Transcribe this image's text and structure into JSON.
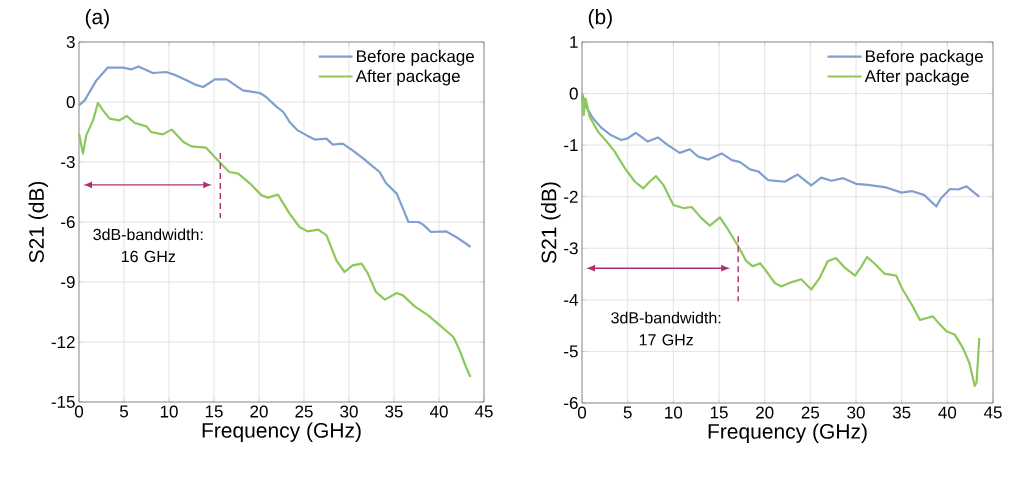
{
  "chart_data": [
    {
      "type": "line",
      "title": "(a)",
      "xlabel": "Frequency (GHz)",
      "ylabel": "S21 (dB)",
      "xlim": [
        0,
        45
      ],
      "ylim": [
        -15,
        3
      ],
      "xticks": [
        0,
        5,
        10,
        15,
        20,
        25,
        30,
        35,
        40,
        45
      ],
      "yticks": [
        -15,
        -12,
        -9,
        -6,
        -3,
        0,
        3
      ],
      "grid": true,
      "legend": "top right",
      "series": [
        {
          "name": "Before package",
          "color": "#7f9fcf",
          "x": [
            0,
            0.63,
            1.93,
            3.2,
            4.9,
            5.8,
            6.6,
            7.1,
            8.2,
            9.7,
            10.8,
            12.0,
            12.9,
            13.8,
            15.1,
            16.4,
            17.1,
            18.2,
            20.1,
            20.8,
            21.9,
            22.7,
            23.4,
            24.3,
            25.3,
            26.2,
            27.5,
            28.2,
            29.3,
            30.4,
            31.6,
            32.5,
            33.4,
            34.1,
            35.3,
            36.0,
            36.6,
            37.7,
            38.2,
            39.1,
            40.8,
            41.9,
            43.0,
            43.5
          ],
          "values": [
            -0.17,
            0.08,
            1.08,
            1.72,
            1.72,
            1.63,
            1.78,
            1.67,
            1.45,
            1.5,
            1.33,
            1.08,
            0.87,
            0.75,
            1.13,
            1.13,
            0.92,
            0.58,
            0.45,
            0.25,
            -0.22,
            -0.5,
            -1.0,
            -1.42,
            -1.67,
            -1.88,
            -1.83,
            -2.13,
            -2.08,
            -2.42,
            -2.83,
            -3.17,
            -3.5,
            -4.05,
            -4.58,
            -5.33,
            -6.0,
            -6.0,
            -6.12,
            -6.5,
            -6.47,
            -6.75,
            -7.08,
            -7.25
          ]
        },
        {
          "name": "After package",
          "color": "#8cc85a",
          "x": [
            0,
            0.44,
            0.8,
            1.56,
            2.1,
            2.67,
            3.4,
            4.5,
            5.3,
            6.2,
            7.5,
            8.0,
            9.3,
            10.3,
            11.6,
            12.5,
            14.1,
            15.6,
            16.7,
            17.7,
            19.0,
            20.3,
            21.0,
            22.1,
            23.4,
            24.5,
            25.4,
            26.6,
            27.5,
            28.6,
            29.5,
            30.4,
            31.4,
            32.1,
            33.0,
            34.0,
            35.3,
            36.0,
            37.3,
            38.8,
            40.1,
            41.6,
            42.3,
            43.0,
            43.5
          ],
          "values": [
            -1.58,
            -2.58,
            -1.67,
            -0.92,
            -0.05,
            -0.42,
            -0.83,
            -0.92,
            -0.7,
            -1.05,
            -1.22,
            -1.5,
            -1.62,
            -1.38,
            -2.0,
            -2.22,
            -2.28,
            -3.0,
            -3.5,
            -3.58,
            -4.08,
            -4.67,
            -4.78,
            -4.63,
            -5.58,
            -6.25,
            -6.47,
            -6.38,
            -6.67,
            -7.92,
            -8.5,
            -8.17,
            -8.08,
            -8.58,
            -9.5,
            -9.88,
            -9.55,
            -9.67,
            -10.22,
            -10.67,
            -11.17,
            -11.75,
            -12.42,
            -13.25,
            -13.75
          ]
        }
      ],
      "ref_lines": [
        {
          "axis": "x",
          "value": 15.7,
          "label": "3dB-bandwidth: 16 GHz",
          "color": "#b0306f",
          "line_style": "dashed"
        }
      ]
    },
    {
      "type": "line",
      "title": "(b)",
      "xlabel": "Frequency (GHz)",
      "ylabel": "S21 (dB)",
      "xlim": [
        0,
        45
      ],
      "ylim": [
        -6,
        1
      ],
      "xticks": [
        0,
        5,
        10,
        15,
        20,
        25,
        30,
        35,
        40,
        45
      ],
      "yticks": [
        -6,
        -5,
        -4,
        -3,
        -2,
        -1,
        0,
        1
      ],
      "grid": true,
      "legend": "top right",
      "series": [
        {
          "name": "Before package",
          "color": "#7f9fcf",
          "x": [
            0,
            0.47,
            1.2,
            2.1,
            3.2,
            4.3,
            5.0,
            5.9,
            7.2,
            8.3,
            9.4,
            10.7,
            11.8,
            12.7,
            13.8,
            15.3,
            16.4,
            17.3,
            18.4,
            19.3,
            20.4,
            22.2,
            23.6,
            25.1,
            26.2,
            27.3,
            28.6,
            30.0,
            31.3,
            33.3,
            35.0,
            36.1,
            37.5,
            38.2,
            38.8,
            39.3,
            40.3,
            41.2,
            42.1,
            43.0,
            43.5
          ],
          "values": [
            0,
            -0.26,
            -0.48,
            -0.66,
            -0.81,
            -0.9,
            -0.87,
            -0.76,
            -0.93,
            -0.85,
            -1.0,
            -1.15,
            -1.08,
            -1.22,
            -1.28,
            -1.16,
            -1.29,
            -1.33,
            -1.47,
            -1.51,
            -1.68,
            -1.71,
            -1.57,
            -1.78,
            -1.63,
            -1.69,
            -1.64,
            -1.75,
            -1.77,
            -1.82,
            -1.92,
            -1.89,
            -1.97,
            -2.09,
            -2.19,
            -2.03,
            -1.85,
            -1.86,
            -1.8,
            -1.93,
            -2.0
          ]
        },
        {
          "name": "After package",
          "color": "#8cc85a",
          "x": [
            0,
            0.18,
            0.4,
            0.84,
            1.75,
            2.7,
            3.6,
            4.7,
            5.8,
            6.7,
            7.4,
            8.1,
            8.9,
            10.0,
            11.1,
            12.0,
            13.1,
            14.0,
            15.1,
            16.0,
            17.1,
            18.0,
            18.7,
            19.5,
            20.2,
            21.1,
            21.8,
            22.9,
            24.0,
            25.1,
            26.0,
            26.9,
            27.8,
            28.8,
            29.9,
            30.6,
            31.2,
            32.0,
            33.1,
            34.4,
            35.1,
            36.1,
            37.0,
            38.4,
            39.2,
            39.9,
            40.8,
            41.7,
            42.4,
            43.0,
            43.2,
            43.5
          ],
          "values": [
            0,
            -0.42,
            -0.1,
            -0.45,
            -0.74,
            -0.93,
            -1.13,
            -1.45,
            -1.71,
            -1.84,
            -1.71,
            -1.6,
            -1.77,
            -2.16,
            -2.22,
            -2.2,
            -2.42,
            -2.56,
            -2.4,
            -2.64,
            -2.96,
            -3.25,
            -3.35,
            -3.29,
            -3.45,
            -3.67,
            -3.74,
            -3.66,
            -3.6,
            -3.8,
            -3.58,
            -3.25,
            -3.19,
            -3.38,
            -3.53,
            -3.35,
            -3.17,
            -3.29,
            -3.49,
            -3.53,
            -3.8,
            -4.09,
            -4.39,
            -4.32,
            -4.48,
            -4.61,
            -4.67,
            -4.93,
            -5.22,
            -5.67,
            -5.6,
            -4.74
          ]
        }
      ],
      "ref_lines": [
        {
          "axis": "x",
          "value": 17.1,
          "label": "3dB-bandwidth: 17 GHz",
          "color": "#b0306f",
          "line_style": "dashed"
        }
      ]
    }
  ]
}
